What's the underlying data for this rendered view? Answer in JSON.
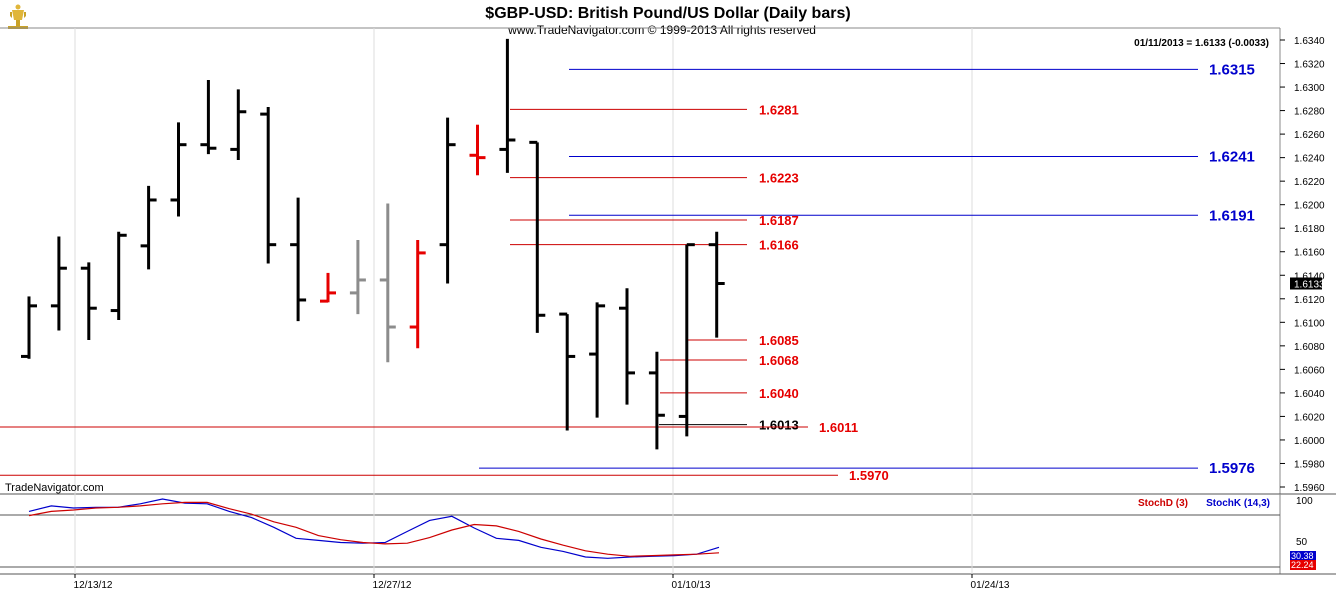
{
  "header": {
    "title": "$GBP-USD:  British Pound/US Dollar  (Daily bars)",
    "copyright": "www.TradeNavigator.com © 1999-2013 All rights reserved",
    "quote": "01/11/2013 = 1.6133 (-0.0033)"
  },
  "watermark": "TradeNavigator.com",
  "indicator": {
    "stochd_label": "StochD (3)",
    "stochk_label": "StochK (14,3)",
    "axis_labels": [
      "100",
      "50"
    ],
    "badge_k": "30.38",
    "badge_d": "22.24"
  },
  "colors": {
    "up_black": "#000000",
    "red": "#e60000",
    "gray": "#8c8c8c",
    "blue": "#0000cc",
    "fib_red": "#cc0000"
  },
  "chart_data": [
    {
      "type": "ohlc",
      "title": "$GBP-USD:  British Pound/US Dollar  (Daily bars)",
      "x_tick_labels": [
        "12/13/12",
        "12/27/12",
        "01/10/13",
        "01/24/13"
      ],
      "y_tick_labels": [
        "1.6340",
        "1.6320",
        "1.6300",
        "1.6280",
        "1.6260",
        "1.6240",
        "1.6220",
        "1.6200",
        "1.6180",
        "1.6160",
        "1.6140",
        "1.6120",
        "1.6100",
        "1.6080",
        "1.6060",
        "1.6040",
        "1.6020",
        "1.6000",
        "1.5980",
        "1.5960"
      ],
      "ylim": [
        1.595,
        1.6343
      ],
      "last_price_label": "1.6133",
      "last_price": 1.6133,
      "bars": [
        {
          "o": 1.6071,
          "h": 1.6122,
          "l": 1.6069,
          "c": 1.6114,
          "color": "black"
        },
        {
          "o": 1.6114,
          "h": 1.6173,
          "l": 1.6093,
          "c": 1.6146,
          "color": "black"
        },
        {
          "o": 1.6146,
          "h": 1.6151,
          "l": 1.6085,
          "c": 1.6112,
          "color": "black"
        },
        {
          "o": 1.611,
          "h": 1.6177,
          "l": 1.6102,
          "c": 1.6174,
          "color": "black"
        },
        {
          "o": 1.6165,
          "h": 1.6216,
          "l": 1.6145,
          "c": 1.6204,
          "color": "black"
        },
        {
          "o": 1.6204,
          "h": 1.627,
          "l": 1.619,
          "c": 1.6251,
          "color": "black"
        },
        {
          "o": 1.6251,
          "h": 1.6306,
          "l": 1.6243,
          "c": 1.6248,
          "color": "black"
        },
        {
          "o": 1.6247,
          "h": 1.6298,
          "l": 1.6238,
          "c": 1.6279,
          "color": "black"
        },
        {
          "o": 1.6277,
          "h": 1.6283,
          "l": 1.615,
          "c": 1.6166,
          "color": "black"
        },
        {
          "o": 1.6166,
          "h": 1.6206,
          "l": 1.6101,
          "c": 1.6119,
          "color": "black"
        },
        {
          "o": 1.6118,
          "h": 1.6142,
          "l": 1.6117,
          "c": 1.6125,
          "color": "red"
        },
        {
          "o": 1.6125,
          "h": 1.617,
          "l": 1.6107,
          "c": 1.6136,
          "color": "gray"
        },
        {
          "o": 1.6136,
          "h": 1.6201,
          "l": 1.6066,
          "c": 1.6096,
          "color": "gray"
        },
        {
          "o": 1.6096,
          "h": 1.617,
          "l": 1.6078,
          "c": 1.6159,
          "color": "red"
        },
        {
          "o": 1.6166,
          "h": 1.6274,
          "l": 1.6133,
          "c": 1.6251,
          "color": "black"
        },
        {
          "o": 1.6242,
          "h": 1.6268,
          "l": 1.6225,
          "c": 1.624,
          "color": "red"
        },
        {
          "o": 1.6247,
          "h": 1.6341,
          "l": 1.6227,
          "c": 1.6255,
          "color": "black"
        },
        {
          "o": 1.6253,
          "h": 1.6253,
          "l": 1.6091,
          "c": 1.6106,
          "color": "black"
        },
        {
          "o": 1.6107,
          "h": 1.6107,
          "l": 1.6008,
          "c": 1.6071,
          "color": "black"
        },
        {
          "o": 1.6073,
          "h": 1.6117,
          "l": 1.6019,
          "c": 1.6114,
          "color": "black"
        },
        {
          "o": 1.6112,
          "h": 1.6129,
          "l": 1.603,
          "c": 1.6057,
          "color": "black"
        },
        {
          "o": 1.6057,
          "h": 1.6075,
          "l": 1.5992,
          "c": 1.6021,
          "color": "black"
        },
        {
          "o": 1.602,
          "h": 1.6166,
          "l": 1.6003,
          "c": 1.6166,
          "color": "black"
        },
        {
          "o": 1.6166,
          "h": 1.6177,
          "l": 1.6087,
          "c": 1.6133,
          "color": "black"
        }
      ],
      "levels": [
        {
          "label": "1.6315",
          "value": 1.6315,
          "color": "blue"
        },
        {
          "label": "1.6241",
          "value": 1.6241,
          "color": "blue"
        },
        {
          "label": "1.6191",
          "value": 1.6191,
          "color": "blue"
        },
        {
          "label": "1.5976",
          "value": 1.5976,
          "color": "blue"
        },
        {
          "label": "1.6281",
          "value": 1.6281,
          "color": "red"
        },
        {
          "label": "1.6223",
          "value": 1.6223,
          "color": "red"
        },
        {
          "label": "1.6187",
          "value": 1.6187,
          "color": "red"
        },
        {
          "label": "1.6166",
          "value": 1.6166,
          "color": "red"
        },
        {
          "label": "1.6085",
          "value": 1.6085,
          "color": "red"
        },
        {
          "label": "1.6068",
          "value": 1.6068,
          "color": "red"
        },
        {
          "label": "1.6040",
          "value": 1.604,
          "color": "red"
        },
        {
          "label": "1.6013",
          "value": 1.6013,
          "color": "black"
        },
        {
          "label": "1.6011",
          "value": 1.6011,
          "color": "red"
        },
        {
          "label": "1.5970",
          "value": 1.597,
          "color": "red"
        }
      ]
    },
    {
      "type": "line",
      "title": "",
      "ylim": [
        0,
        100
      ],
      "series": [
        {
          "name": "StochK (14,3)",
          "color": "#0000cc",
          "values": [
            82,
            90,
            87,
            88,
            88,
            93,
            100,
            94,
            93,
            82,
            73,
            59,
            43,
            40,
            37,
            36,
            37,
            53,
            69,
            75,
            58,
            43,
            40,
            30,
            24,
            16,
            14,
            16,
            17,
            18,
            20,
            30
          ]
        },
        {
          "name": "StochD (3)",
          "color": "#cc0000",
          "values": [
            76,
            82,
            84,
            87,
            88,
            90,
            93,
            95,
            95,
            86,
            78,
            67,
            59,
            47,
            41,
            37,
            35,
            36,
            44,
            55,
            63,
            61,
            53,
            42,
            33,
            25,
            20,
            17,
            18,
            19,
            20,
            22
          ]
        }
      ]
    }
  ]
}
